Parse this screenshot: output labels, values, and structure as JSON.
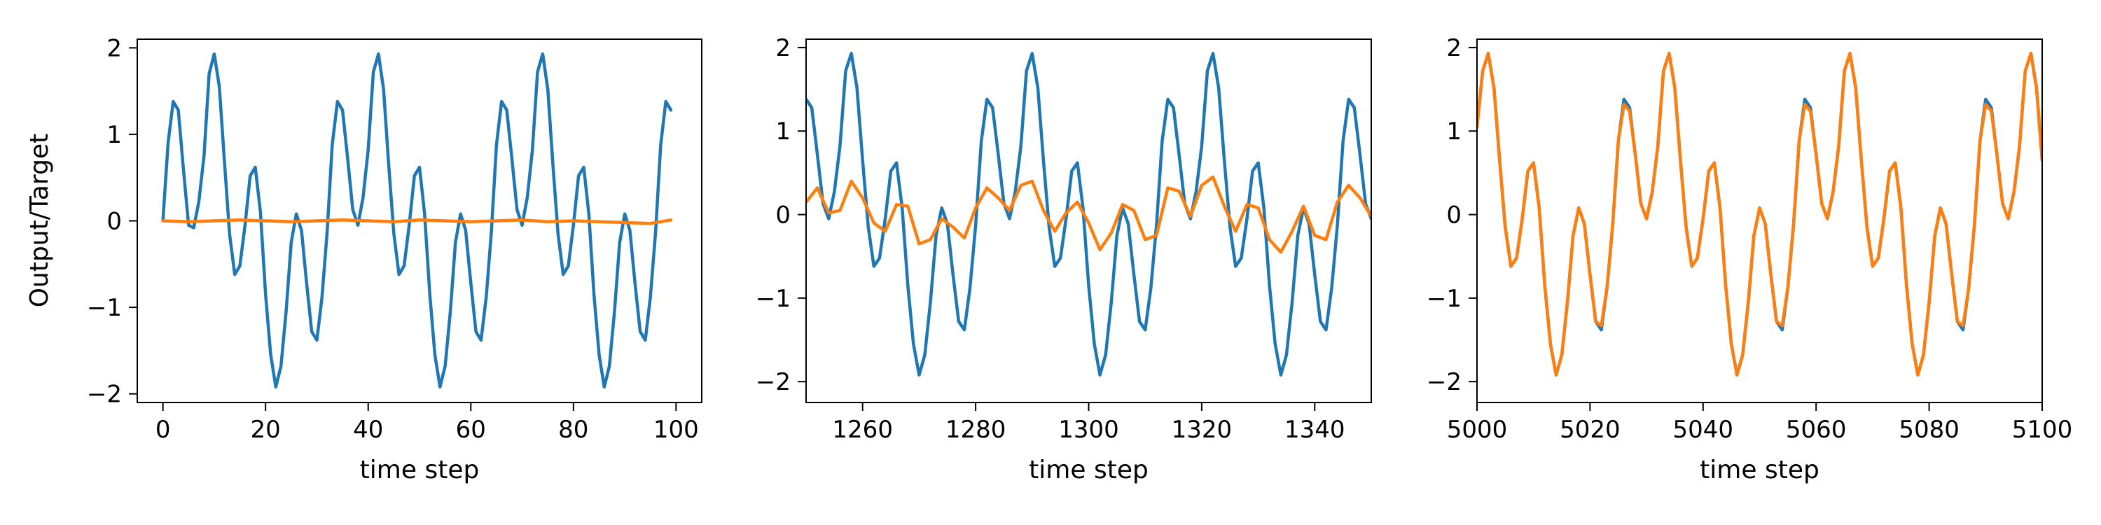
{
  "figure": {
    "ylabel": "Output/Target",
    "xlabel": "time step"
  },
  "chart_data": [
    {
      "type": "line",
      "title": "",
      "xlabel": "time step",
      "ylabel": "Output/Target",
      "xlim": [
        -5,
        105
      ],
      "ylim": [
        -2.1,
        2.1
      ],
      "xticks": [
        0,
        20,
        40,
        60,
        80,
        100
      ],
      "yticks": [
        -2,
        -1,
        0,
        1,
        2
      ],
      "grid": false,
      "series_colors": [
        "#1f77b4",
        "#ff7f0e"
      ],
      "series": [
        {
          "name": "",
          "x": [
            0,
            1,
            2,
            3,
            4,
            5,
            6,
            7,
            8,
            9,
            10,
            11,
            12,
            13,
            14,
            15,
            16,
            17,
            18,
            19,
            20,
            21,
            22,
            23,
            24,
            25,
            26,
            27,
            28,
            29,
            30,
            31,
            32,
            33,
            34,
            35,
            36,
            37,
            38,
            39,
            40,
            41,
            42,
            43,
            44,
            45,
            46,
            47,
            48,
            49,
            50,
            51,
            52,
            53,
            54,
            55,
            56,
            57,
            58,
            59,
            60,
            61,
            62,
            63,
            64,
            65,
            66,
            67,
            68,
            69,
            70,
            71,
            72,
            73,
            74,
            75,
            76,
            77,
            78,
            79,
            80,
            81,
            82,
            83,
            84,
            85,
            86,
            87,
            88,
            89,
            90,
            91,
            92,
            93,
            94,
            95,
            96,
            97,
            98,
            99
          ],
          "y": [
            0,
            0.9,
            1.38,
            1.28,
            0.6,
            -0.05,
            -0.08,
            0.22,
            0.75,
            1.7,
            1.93,
            1.55,
            0.67,
            -0.16,
            -0.62,
            -0.52,
            -0.05,
            0.52,
            0.62,
            0.1,
            -0.85,
            -1.55,
            -1.92,
            -1.68,
            -1.05,
            -0.25,
            0.08,
            -0.11,
            -0.72,
            -1.28,
            -1.38,
            -0.88,
            -0.13,
            0.88,
            1.38,
            1.28,
            0.72,
            0.13,
            -0.05,
            0.27,
            0.82,
            1.72,
            1.93,
            1.52,
            0.65,
            -0.15,
            -0.62,
            -0.52,
            -0.05,
            0.52,
            0.62,
            0.08,
            -0.85,
            -1.55,
            -1.92,
            -1.68,
            -1.05,
            -0.25,
            0.08,
            -0.11,
            -0.72,
            -1.28,
            -1.38,
            -0.88,
            -0.13,
            0.88,
            1.38,
            1.28,
            0.72,
            0.13,
            -0.05,
            0.27,
            0.82,
            1.72,
            1.93,
            1.52,
            0.65,
            -0.15,
            -0.62,
            -0.52,
            -0.05,
            0.52,
            0.62,
            0.08,
            -0.85,
            -1.55,
            -1.92,
            -1.68,
            -1.05,
            -0.25,
            0.08,
            -0.11,
            -0.72,
            -1.28,
            -1.38,
            -0.88,
            -0.13,
            0.88,
            1.38,
            1.28
          ]
        },
        {
          "name": "",
          "x": [
            0,
            5,
            10,
            15,
            20,
            25,
            30,
            35,
            40,
            45,
            50,
            55,
            60,
            65,
            70,
            75,
            80,
            85,
            90,
            95,
            99
          ],
          "y": [
            0,
            -0.01,
            0,
            0.01,
            0,
            -0.01,
            0,
            0.01,
            0,
            -0.01,
            0.01,
            0,
            -0.01,
            0,
            0.01,
            -0.01,
            0,
            -0.01,
            -0.02,
            -0.03,
            0.01
          ]
        }
      ]
    },
    {
      "type": "line",
      "title": "",
      "xlabel": "time step",
      "ylabel": "",
      "xlim": [
        1250,
        1350
      ],
      "ylim": [
        -2.25,
        2.1
      ],
      "xticks": [
        1260,
        1280,
        1300,
        1320,
        1340
      ],
      "yticks": [
        -2,
        -1,
        0,
        1,
        2
      ],
      "grid": false,
      "series_colors": [
        "#1f77b4",
        "#ff7f0e"
      ],
      "series": [
        {
          "name": "",
          "x": [
            1250,
            1251,
            1252,
            1253,
            1254,
            1255,
            1256,
            1257,
            1258,
            1259,
            1260,
            1261,
            1262,
            1263,
            1264,
            1265,
            1266,
            1267,
            1268,
            1269,
            1270,
            1271,
            1272,
            1273,
            1274,
            1275,
            1276,
            1277,
            1278,
            1279,
            1280,
            1281,
            1282,
            1283,
            1284,
            1285,
            1286,
            1287,
            1288,
            1289,
            1290,
            1291,
            1292,
            1293,
            1294,
            1295,
            1296,
            1297,
            1298,
            1299,
            1300,
            1301,
            1302,
            1303,
            1304,
            1305,
            1306,
            1307,
            1308,
            1309,
            1310,
            1311,
            1312,
            1313,
            1314,
            1315,
            1316,
            1317,
            1318,
            1319,
            1320,
            1321,
            1322,
            1323,
            1324,
            1325,
            1326,
            1327,
            1328,
            1329,
            1330,
            1331,
            1332,
            1333,
            1334,
            1335,
            1336,
            1337,
            1338,
            1339,
            1340,
            1341,
            1342,
            1343,
            1344,
            1345,
            1346,
            1347,
            1348,
            1349,
            1350
          ],
          "y": [
            1.38,
            1.28,
            0.72,
            0.13,
            -0.05,
            0.27,
            0.82,
            1.72,
            1.93,
            1.52,
            0.65,
            -0.15,
            -0.62,
            -0.52,
            -0.05,
            0.52,
            0.62,
            0.08,
            -0.85,
            -1.55,
            -1.92,
            -1.68,
            -1.05,
            -0.25,
            0.08,
            -0.11,
            -0.72,
            -1.28,
            -1.38,
            -0.88,
            -0.13,
            0.88,
            1.38,
            1.28,
            0.72,
            0.13,
            -0.05,
            0.27,
            0.82,
            1.72,
            1.93,
            1.52,
            0.65,
            -0.15,
            -0.62,
            -0.52,
            -0.05,
            0.52,
            0.62,
            0.08,
            -0.85,
            -1.55,
            -1.92,
            -1.68,
            -1.05,
            -0.25,
            0.08,
            -0.11,
            -0.72,
            -1.28,
            -1.38,
            -0.88,
            -0.13,
            0.88,
            1.38,
            1.28,
            0.72,
            0.13,
            -0.05,
            0.27,
            0.82,
            1.72,
            1.93,
            1.52,
            0.65,
            -0.15,
            -0.62,
            -0.52,
            -0.05,
            0.52,
            0.62,
            0.08,
            -0.85,
            -1.55,
            -1.92,
            -1.68,
            -1.05,
            -0.25,
            0.08,
            -0.11,
            -0.72,
            -1.28,
            -1.38,
            -0.88,
            -0.13,
            0.88,
            1.38,
            1.28,
            0.72,
            0.13,
            -0.05
          ]
        },
        {
          "name": "",
          "x": [
            1250,
            1252,
            1254,
            1256,
            1258,
            1260,
            1262,
            1264,
            1266,
            1268,
            1270,
            1272,
            1274,
            1276,
            1278,
            1280,
            1282,
            1284,
            1286,
            1288,
            1290,
            1292,
            1294,
            1296,
            1298,
            1300,
            1302,
            1304,
            1306,
            1308,
            1310,
            1312,
            1314,
            1316,
            1318,
            1320,
            1322,
            1324,
            1326,
            1328,
            1330,
            1332,
            1334,
            1336,
            1338,
            1340,
            1342,
            1344,
            1346,
            1348,
            1350
          ],
          "y": [
            0.15,
            0.32,
            0.02,
            0.05,
            0.4,
            0.2,
            -0.1,
            -0.2,
            0.12,
            0.1,
            -0.35,
            -0.3,
            -0.05,
            -0.15,
            -0.28,
            0.08,
            0.32,
            0.2,
            0.05,
            0.35,
            0.4,
            0.05,
            -0.2,
            0.02,
            0.15,
            -0.1,
            -0.42,
            -0.22,
            0.12,
            0.05,
            -0.3,
            -0.25,
            0.32,
            0.28,
            -0.02,
            0.35,
            0.45,
            0.1,
            -0.2,
            0.12,
            0.08,
            -0.3,
            -0.45,
            -0.2,
            0.1,
            -0.25,
            -0.3,
            0.15,
            0.35,
            0.2,
            -0.02
          ]
        }
      ]
    },
    {
      "type": "line",
      "title": "",
      "xlabel": "time step",
      "ylabel": "",
      "xlim": [
        5000,
        5100
      ],
      "ylim": [
        -2.25,
        2.1
      ],
      "xticks": [
        5000,
        5020,
        5040,
        5060,
        5080,
        5100
      ],
      "yticks": [
        -2,
        -1,
        0,
        1,
        2
      ],
      "grid": false,
      "series_colors": [
        "#1f77b4",
        "#ff7f0e"
      ],
      "series": [
        {
          "name": "",
          "x": [
            5000,
            5001,
            5002,
            5003,
            5004,
            5005,
            5006,
            5007,
            5008,
            5009,
            5010,
            5011,
            5012,
            5013,
            5014,
            5015,
            5016,
            5017,
            5018,
            5019,
            5020,
            5021,
            5022,
            5023,
            5024,
            5025,
            5026,
            5027,
            5028,
            5029,
            5030,
            5031,
            5032,
            5033,
            5034,
            5035,
            5036,
            5037,
            5038,
            5039,
            5040,
            5041,
            5042,
            5043,
            5044,
            5045,
            5046,
            5047,
            5048,
            5049,
            5050,
            5051,
            5052,
            5053,
            5054,
            5055,
            5056,
            5057,
            5058,
            5059,
            5060,
            5061,
            5062,
            5063,
            5064,
            5065,
            5066,
            5067,
            5068,
            5069,
            5070,
            5071,
            5072,
            5073,
            5074,
            5075,
            5076,
            5077,
            5078,
            5079,
            5080,
            5081,
            5082,
            5083,
            5084,
            5085,
            5086,
            5087,
            5088,
            5089,
            5090,
            5091,
            5092,
            5093,
            5094,
            5095,
            5096,
            5097,
            5098,
            5099,
            5100
          ],
          "y": [
            1.05,
            1.72,
            1.93,
            1.52,
            0.65,
            -0.15,
            -0.62,
            -0.52,
            -0.05,
            0.52,
            0.62,
            0.08,
            -0.85,
            -1.55,
            -1.92,
            -1.68,
            -1.05,
            -0.25,
            0.08,
            -0.11,
            -0.72,
            -1.28,
            -1.38,
            -0.88,
            -0.13,
            0.88,
            1.38,
            1.28,
            0.72,
            0.13,
            -0.05,
            0.27,
            0.82,
            1.72,
            1.93,
            1.52,
            0.65,
            -0.15,
            -0.62,
            -0.52,
            -0.05,
            0.52,
            0.62,
            0.08,
            -0.85,
            -1.55,
            -1.92,
            -1.68,
            -1.05,
            -0.25,
            0.08,
            -0.11,
            -0.72,
            -1.28,
            -1.38,
            -0.88,
            -0.13,
            0.88,
            1.38,
            1.28,
            0.72,
            0.13,
            -0.05,
            0.27,
            0.82,
            1.72,
            1.93,
            1.52,
            0.65,
            -0.15,
            -0.62,
            -0.52,
            -0.05,
            0.52,
            0.62,
            0.08,
            -0.85,
            -1.55,
            -1.92,
            -1.68,
            -1.05,
            -0.25,
            0.08,
            -0.11,
            -0.72,
            -1.28,
            -1.38,
            -0.88,
            -0.13,
            0.88,
            1.38,
            1.28,
            0.72,
            0.13,
            -0.05,
            0.27,
            0.82,
            1.72,
            1.93,
            1.52,
            0.65
          ]
        },
        {
          "name": "",
          "x": [
            5000,
            5001,
            5002,
            5003,
            5004,
            5005,
            5006,
            5007,
            5008,
            5009,
            5010,
            5011,
            5012,
            5013,
            5014,
            5015,
            5016,
            5017,
            5018,
            5019,
            5020,
            5021,
            5022,
            5023,
            5024,
            5025,
            5026,
            5027,
            5028,
            5029,
            5030,
            5031,
            5032,
            5033,
            5034,
            5035,
            5036,
            5037,
            5038,
            5039,
            5040,
            5041,
            5042,
            5043,
            5044,
            5045,
            5046,
            5047,
            5048,
            5049,
            5050,
            5051,
            5052,
            5053,
            5054,
            5055,
            5056,
            5057,
            5058,
            5059,
            5060,
            5061,
            5062,
            5063,
            5064,
            5065,
            5066,
            5067,
            5068,
            5069,
            5070,
            5071,
            5072,
            5073,
            5074,
            5075,
            5076,
            5077,
            5078,
            5079,
            5080,
            5081,
            5082,
            5083,
            5084,
            5085,
            5086,
            5087,
            5088,
            5089,
            5090,
            5091,
            5092,
            5093,
            5094,
            5095,
            5096,
            5097,
            5098,
            5099,
            5100
          ],
          "y": [
            1.05,
            1.72,
            1.93,
            1.52,
            0.65,
            -0.15,
            -0.62,
            -0.52,
            -0.05,
            0.52,
            0.62,
            0.08,
            -0.85,
            -1.55,
            -1.92,
            -1.68,
            -1.05,
            -0.25,
            0.08,
            -0.11,
            -0.72,
            -1.28,
            -1.33,
            -0.88,
            -0.13,
            0.88,
            1.32,
            1.24,
            0.72,
            0.13,
            -0.05,
            0.27,
            0.82,
            1.72,
            1.93,
            1.52,
            0.65,
            -0.15,
            -0.62,
            -0.52,
            -0.05,
            0.52,
            0.62,
            0.08,
            -0.85,
            -1.55,
            -1.92,
            -1.68,
            -1.05,
            -0.25,
            0.08,
            -0.11,
            -0.72,
            -1.28,
            -1.33,
            -0.88,
            -0.13,
            0.88,
            1.32,
            1.24,
            0.72,
            0.13,
            -0.05,
            0.27,
            0.82,
            1.72,
            1.93,
            1.52,
            0.65,
            -0.15,
            -0.62,
            -0.52,
            -0.05,
            0.52,
            0.62,
            0.08,
            -0.85,
            -1.55,
            -1.92,
            -1.68,
            -1.05,
            -0.25,
            0.08,
            -0.11,
            -0.72,
            -1.28,
            -1.33,
            -0.88,
            -0.13,
            0.88,
            1.32,
            1.24,
            0.72,
            0.13,
            -0.05,
            0.27,
            0.82,
            1.72,
            1.93,
            1.52,
            0.65
          ]
        }
      ]
    }
  ]
}
